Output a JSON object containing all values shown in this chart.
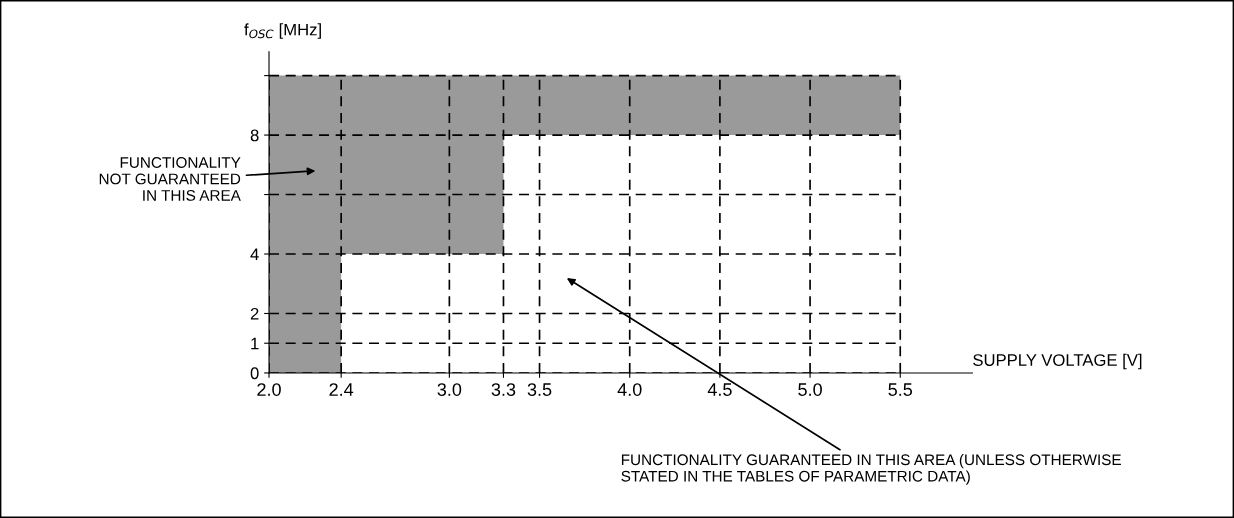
{
  "chart_data": {
    "type": "area",
    "xlabel": "SUPPLY VOLTAGE [V]",
    "ylabel": "f$_{OSC}$ [MHz]",
    "series": [
      {
        "color": "#9a9a9a",
        "x": [
          2.0,
          5.5
        ],
        "values": [
          10,
          10
        ]
      },
      {
        "color": "#ffffff",
        "x": [
          2.0,
          2.4,
          2.4,
          3.3,
          3.3,
          5.5
        ],
        "values": [
          0,
          0,
          4,
          4,
          8,
          8
        ]
      }
    ],
    "xlim": [
      2.0,
      5.9
    ],
    "ylim": [
      0,
      10.8
    ],
    "xticks": [
      {
        "value": 2.0,
        "label": "2.0"
      },
      {
        "value": 2.4,
        "label": "2.4"
      },
      {
        "value": 3.0,
        "label": "3.0"
      },
      {
        "value": 3.3,
        "label": "3.3"
      },
      {
        "value": 3.5,
        "label": "3.5"
      },
      {
        "value": 4.0,
        "label": "4.0"
      },
      {
        "value": 4.5,
        "label": "4.5"
      },
      {
        "value": 5.0,
        "label": "5.0"
      },
      {
        "value": 5.5,
        "label": "5.5"
      }
    ],
    "yticks": [
      0,
      1,
      2,
      4,
      {
        "value": 6,
        "label": null
      },
      8,
      {
        "value": 10,
        "label": null
      }
    ],
    "grid": true,
    "legend": false,
    "annotations": [
      "FUNCTIONALITY\nNOT GUARANTEED\nIN THIS AREA",
      "FUNCTIONALITY GUARANTEED IN THIS AREA (UNLESS OTHERWISE\nSTATED IN THE TABLES OF PARAMETRIC DATA)"
    ]
  }
}
